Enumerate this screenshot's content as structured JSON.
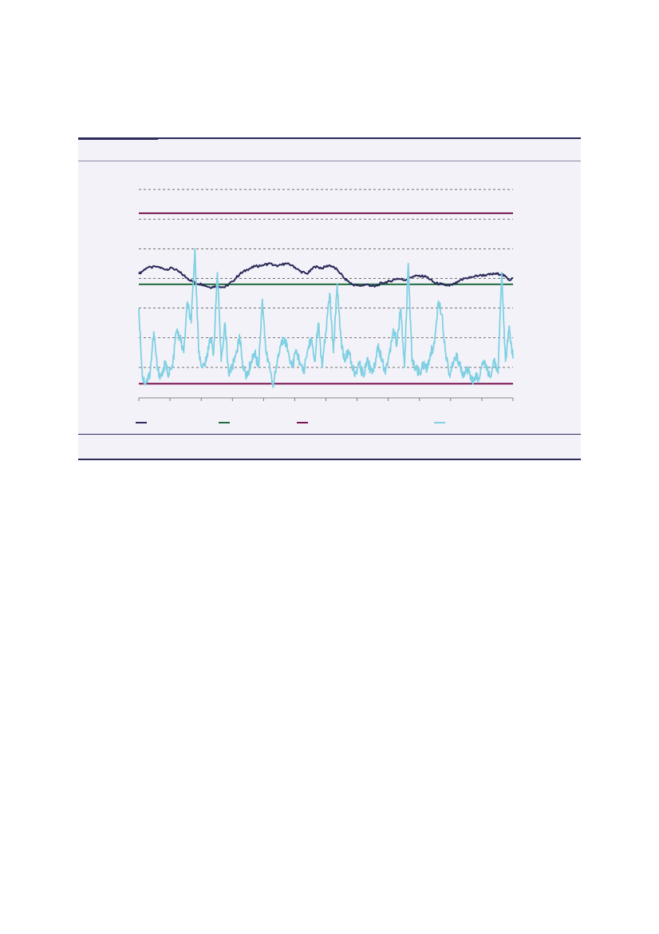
{
  "colors": {
    "panel_bg": "#f3f2f8",
    "rule": "#2b2a5a",
    "series_dark": "#2b2a5a",
    "series_light": "#7fd0e3",
    "ref_green": "#1f6b3f",
    "ref_maroon": "#7a1450",
    "grid": "#444444"
  },
  "chart_data": {
    "type": "line",
    "title": "",
    "xlabel": "",
    "ylabel": "",
    "grid": true,
    "grid_style": "dashed",
    "legend_position": "bottom",
    "x_ticks": 12,
    "ylim": [
      0,
      8
    ],
    "y_gridlines": [
      1,
      2,
      3,
      4,
      5,
      6,
      7
    ],
    "reference_lines": [
      {
        "name": "",
        "value": 6.2,
        "color": "#7a1450"
      },
      {
        "name": "",
        "value": 3.8,
        "color": "#1f6b3f"
      },
      {
        "name": "",
        "value": 0.45,
        "color": "#7a1450"
      }
    ],
    "series": [
      {
        "name": "",
        "color": "#2b2a5a",
        "anchors": [
          [
            0,
            4.15
          ],
          [
            2,
            4.35
          ],
          [
            5,
            4.4
          ],
          [
            7,
            4.3
          ],
          [
            9,
            4.35
          ],
          [
            11,
            4.2
          ],
          [
            13,
            4.0
          ],
          [
            15,
            3.85
          ],
          [
            17,
            3.8
          ],
          [
            19,
            3.7
          ],
          [
            21,
            3.75
          ],
          [
            23,
            3.7
          ],
          [
            25,
            3.9
          ],
          [
            27,
            4.15
          ],
          [
            29,
            4.3
          ],
          [
            31,
            4.4
          ],
          [
            33,
            4.45
          ],
          [
            35,
            4.5
          ],
          [
            37,
            4.4
          ],
          [
            39,
            4.5
          ],
          [
            41,
            4.45
          ],
          [
            43,
            4.25
          ],
          [
            45,
            4.15
          ],
          [
            47,
            4.4
          ],
          [
            49,
            4.35
          ],
          [
            51,
            4.45
          ],
          [
            53,
            4.3
          ],
          [
            55,
            4.0
          ],
          [
            57,
            3.8
          ],
          [
            59,
            3.75
          ],
          [
            61,
            3.8
          ],
          [
            63,
            3.72
          ],
          [
            65,
            3.85
          ],
          [
            67,
            3.9
          ],
          [
            69,
            4.0
          ],
          [
            71,
            3.95
          ],
          [
            73,
            4.05
          ],
          [
            75,
            4.1
          ],
          [
            77,
            4.05
          ],
          [
            79,
            3.85
          ],
          [
            81,
            3.8
          ],
          [
            83,
            3.75
          ],
          [
            85,
            3.85
          ],
          [
            87,
            4.0
          ],
          [
            89,
            4.05
          ],
          [
            91,
            4.1
          ],
          [
            93,
            4.12
          ],
          [
            95,
            4.15
          ],
          [
            97,
            4.15
          ],
          [
            99,
            3.95
          ],
          [
            100,
            4.0
          ]
        ]
      },
      {
        "name": "",
        "color": "#7fd0e3",
        "anchors": [
          [
            0,
            3.0
          ],
          [
            1,
            0.6
          ],
          [
            2,
            0.5
          ],
          [
            3,
            0.8
          ],
          [
            4,
            2.2
          ],
          [
            5,
            0.9
          ],
          [
            6,
            0.7
          ],
          [
            7,
            1.1
          ],
          [
            8,
            0.8
          ],
          [
            9,
            1.0
          ],
          [
            10,
            2.2
          ],
          [
            11,
            2.0
          ],
          [
            12,
            1.5
          ],
          [
            13,
            3.2
          ],
          [
            14,
            2.5
          ],
          [
            15,
            5.0
          ],
          [
            16,
            1.5
          ],
          [
            17,
            1.0
          ],
          [
            18,
            1.2
          ],
          [
            19,
            2.0
          ],
          [
            20,
            1.5
          ],
          [
            21,
            4.2
          ],
          [
            22,
            1.2
          ],
          [
            23,
            2.5
          ],
          [
            24,
            0.8
          ],
          [
            25,
            1.0
          ],
          [
            26,
            1.5
          ],
          [
            27,
            2.0
          ],
          [
            28,
            0.9
          ],
          [
            29,
            0.7
          ],
          [
            30,
            1.2
          ],
          [
            31,
            1.5
          ],
          [
            32,
            1.0
          ],
          [
            33,
            3.3
          ],
          [
            34,
            1.5
          ],
          [
            35,
            1.0
          ],
          [
            36,
            0.4
          ],
          [
            37,
            1.2
          ],
          [
            38,
            1.8
          ],
          [
            39,
            2.0
          ],
          [
            40,
            1.5
          ],
          [
            41,
            1.0
          ],
          [
            42,
            1.6
          ],
          [
            43,
            1.2
          ],
          [
            44,
            0.8
          ],
          [
            45,
            1.5
          ],
          [
            46,
            2.0
          ],
          [
            47,
            1.2
          ],
          [
            48,
            2.5
          ],
          [
            49,
            1.0
          ],
          [
            50,
            2.2
          ],
          [
            51,
            3.5
          ],
          [
            52,
            1.5
          ],
          [
            53,
            3.8
          ],
          [
            54,
            2.0
          ],
          [
            55,
            1.2
          ],
          [
            56,
            1.6
          ],
          [
            57,
            1.0
          ],
          [
            58,
            0.8
          ],
          [
            59,
            1.1
          ],
          [
            60,
            0.7
          ],
          [
            61,
            1.3
          ],
          [
            62,
            0.9
          ],
          [
            63,
            1.0
          ],
          [
            64,
            1.8
          ],
          [
            65,
            1.2
          ],
          [
            66,
            0.9
          ],
          [
            67,
            1.5
          ],
          [
            68,
            2.3
          ],
          [
            69,
            1.8
          ],
          [
            70,
            3.0
          ],
          [
            71,
            1.0
          ],
          [
            72,
            4.5
          ],
          [
            73,
            1.2
          ],
          [
            74,
            1.0
          ],
          [
            75,
            0.8
          ],
          [
            76,
            1.1
          ],
          [
            77,
            0.9
          ],
          [
            78,
            1.5
          ],
          [
            79,
            1.8
          ],
          [
            80,
            3.2
          ],
          [
            81,
            2.8
          ],
          [
            82,
            1.5
          ],
          [
            83,
            0.8
          ],
          [
            84,
            1.1
          ],
          [
            85,
            1.4
          ],
          [
            86,
            1.0
          ],
          [
            87,
            0.7
          ],
          [
            88,
            0.9
          ],
          [
            89,
            0.5
          ],
          [
            90,
            0.7
          ],
          [
            91,
            0.6
          ],
          [
            92,
            1.2
          ],
          [
            93,
            0.9
          ],
          [
            94,
            0.7
          ],
          [
            95,
            1.3
          ],
          [
            96,
            0.8
          ],
          [
            97,
            4.2
          ],
          [
            98,
            1.2
          ],
          [
            99,
            2.4
          ],
          [
            100,
            1.3
          ]
        ]
      }
    ]
  }
}
